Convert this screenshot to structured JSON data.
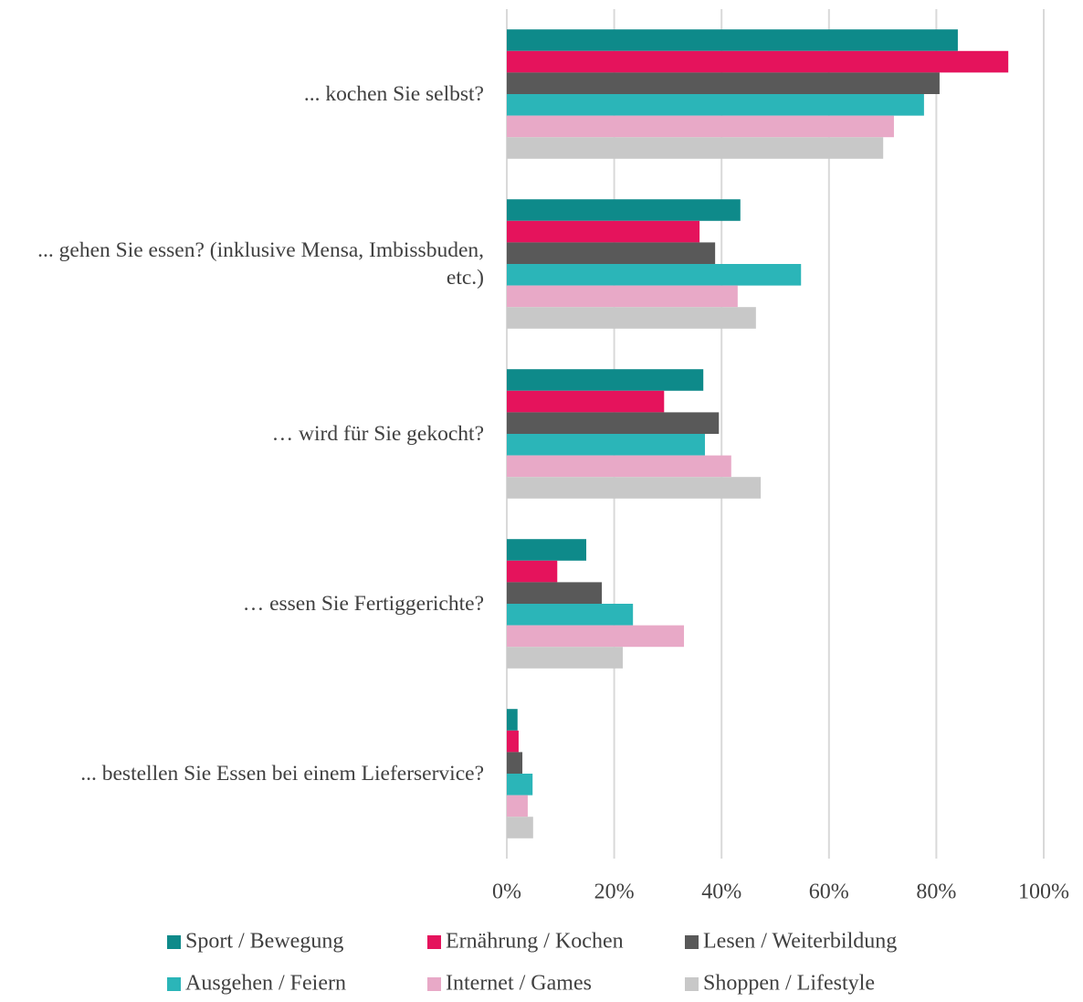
{
  "chart_data": {
    "type": "barh",
    "categories": [
      "... kochen Sie selbst?",
      "... gehen Sie essen? (inklusive Mensa, Imbissbuden, etc.)",
      "… wird für Sie gekocht?",
      "… essen Sie Fertiggerichte?",
      "... bestellen Sie Essen bei einem Lieferservice?"
    ],
    "series": [
      {
        "name": "Sport / Bewegung",
        "color": "#0e8a8a",
        "values": [
          84.0,
          43.5,
          36.6,
          14.8,
          2.0
        ]
      },
      {
        "name": "Ernährung / Kochen",
        "color": "#e5135c",
        "values": [
          93.4,
          35.9,
          29.3,
          9.4,
          2.2
        ]
      },
      {
        "name": "Lesen / Weiterbildung",
        "color": "#595959",
        "values": [
          80.6,
          38.8,
          39.5,
          17.7,
          2.9
        ]
      },
      {
        "name": "Ausgehen / Feiern",
        "color": "#2bb5b8",
        "values": [
          77.7,
          54.8,
          36.9,
          23.5,
          4.8
        ]
      },
      {
        "name": "Internet / Games",
        "color": "#e8a9c7",
        "values": [
          72.1,
          43.0,
          41.8,
          33.0,
          3.9
        ]
      },
      {
        "name": "Shoppen / Lifestyle",
        "color": "#c8c8c8",
        "values": [
          70.1,
          46.4,
          47.3,
          21.6,
          4.9
        ]
      }
    ],
    "xlim": [
      0,
      100
    ],
    "xticks": [
      {
        "value": 0,
        "label": "0%"
      },
      {
        "value": 20,
        "label": "20%"
      },
      {
        "value": 40,
        "label": "40%"
      },
      {
        "value": 60,
        "label": "60%"
      },
      {
        "value": 80,
        "label": "80%"
      },
      {
        "value": 100,
        "label": "100%"
      }
    ],
    "grid": true,
    "legend": "bottom"
  }
}
